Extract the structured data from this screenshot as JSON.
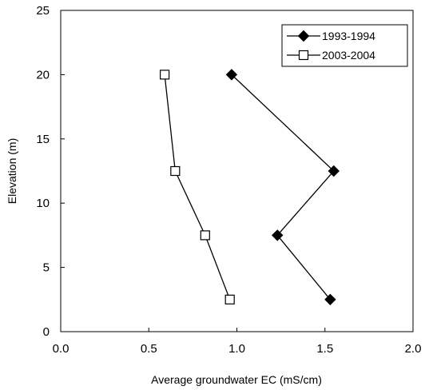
{
  "chart_data": {
    "type": "line",
    "title": "",
    "xlabel": "Average groundwater EC (mS/cm)",
    "ylabel": "Elevation (m)",
    "xlim": [
      0,
      2
    ],
    "ylim": [
      0,
      25
    ],
    "xticks": [
      "0.0",
      "0.5",
      "1.0",
      "1.5",
      "2.0"
    ],
    "yticks": [
      "0",
      "5",
      "10",
      "15",
      "20",
      "25"
    ],
    "grid": false,
    "legend_position": "top-right",
    "series": [
      {
        "name": "1993-1994",
        "marker": "filled-diamond",
        "color": "#000000",
        "points": [
          {
            "x": 0.97,
            "y": 20
          },
          {
            "x": 1.55,
            "y": 12.5
          },
          {
            "x": 1.23,
            "y": 7.5
          },
          {
            "x": 1.53,
            "y": 2.5
          }
        ]
      },
      {
        "name": "2003-2004",
        "marker": "open-square",
        "color": "#000000",
        "points": [
          {
            "x": 0.59,
            "y": 20
          },
          {
            "x": 0.65,
            "y": 12.5
          },
          {
            "x": 0.82,
            "y": 7.5
          },
          {
            "x": 0.96,
            "y": 2.5
          }
        ]
      }
    ]
  }
}
